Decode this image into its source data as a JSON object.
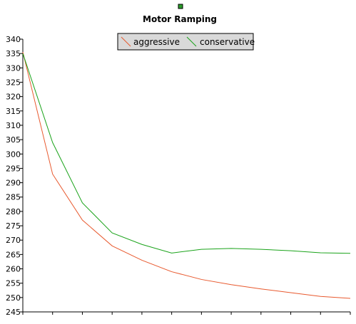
{
  "chart_data": {
    "type": "line",
    "title": "Motor Ramping",
    "xlabel": "",
    "ylabel": "",
    "ylim": [
      245,
      340
    ],
    "yticks": [
      245,
      250,
      255,
      260,
      265,
      270,
      275,
      280,
      285,
      290,
      295,
      300,
      305,
      310,
      315,
      320,
      325,
      330,
      335,
      340
    ],
    "x": [
      0,
      1,
      2,
      3,
      4,
      5,
      6,
      7,
      8,
      9,
      10,
      11
    ],
    "xlim": [
      0,
      11
    ],
    "grid": false,
    "legend_position": "top-center",
    "series": [
      {
        "name": "aggressive",
        "color": "#e8592e",
        "values": [
          335.5,
          293,
          277,
          268,
          263,
          259,
          256.3,
          254.5,
          253,
          251.7,
          250.4,
          249.7
        ]
      },
      {
        "name": "conservative",
        "color": "#1aa31a",
        "values": [
          335,
          304,
          283,
          272.5,
          268.5,
          265.5,
          266.8,
          267.1,
          266.8,
          266.3,
          265.6,
          265.4
        ]
      }
    ]
  },
  "title_marker_color": "#2a9d2a"
}
